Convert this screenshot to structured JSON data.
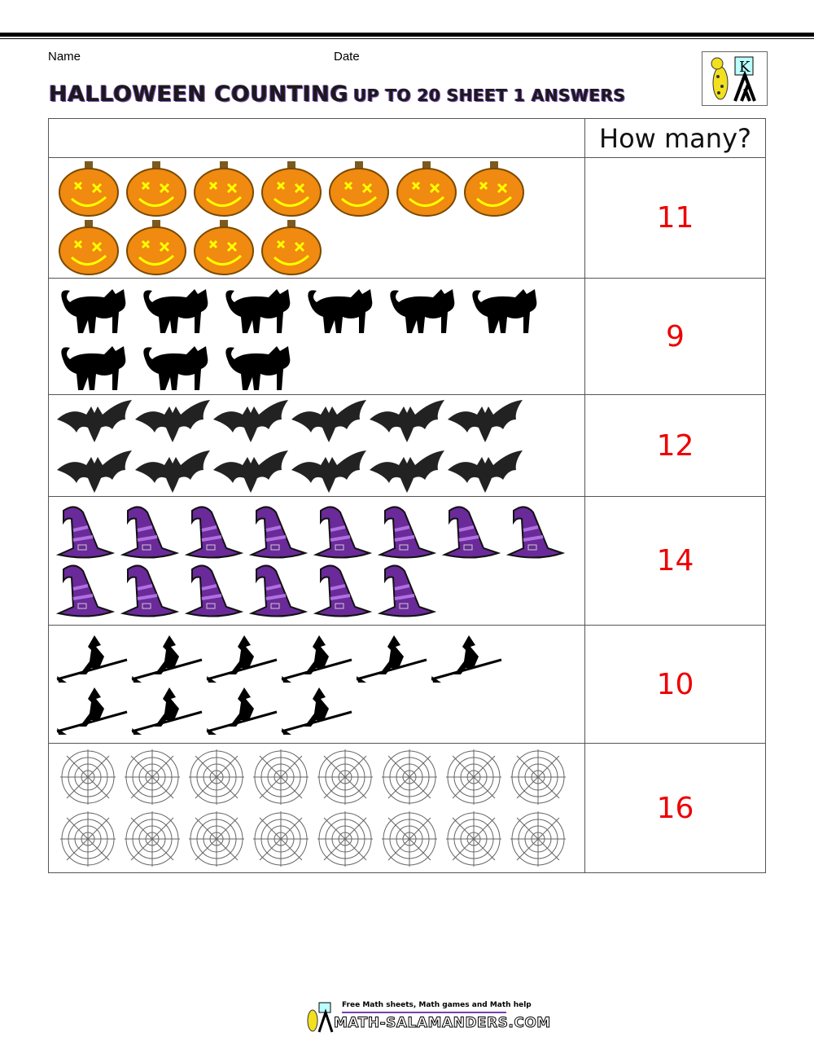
{
  "header": {
    "name_label": "Name",
    "date_label": "Date",
    "title_main": "HALLOWEEN COUNTING",
    "title_sub": "UP TO 20 SHEET 1 ANSWERS"
  },
  "table": {
    "answer_header": "How many?",
    "rows": [
      {
        "icon": "pumpkin-icon",
        "count": 11,
        "per_line": 7,
        "answer": "11"
      },
      {
        "icon": "cat-icon",
        "count": 9,
        "per_line": 6,
        "answer": "9"
      },
      {
        "icon": "bat-icon",
        "count": 12,
        "per_line": 6,
        "answer": "12"
      },
      {
        "icon": "witch-hat-icon",
        "count": 14,
        "per_line": 8,
        "answer": "14"
      },
      {
        "icon": "witch-on-broom-icon",
        "count": 10,
        "per_line": 6,
        "answer": "10"
      },
      {
        "icon": "spider-web-icon",
        "count": 16,
        "per_line": 8,
        "answer": "16"
      }
    ]
  },
  "footer": {
    "tagline": "Free Math sheets, Math games and Math help",
    "site": "MATH-SALAMANDERS.COM"
  },
  "colors": {
    "answer": "#e00000",
    "pumpkin": "#f08a10",
    "hat": "#6a2a9a"
  }
}
